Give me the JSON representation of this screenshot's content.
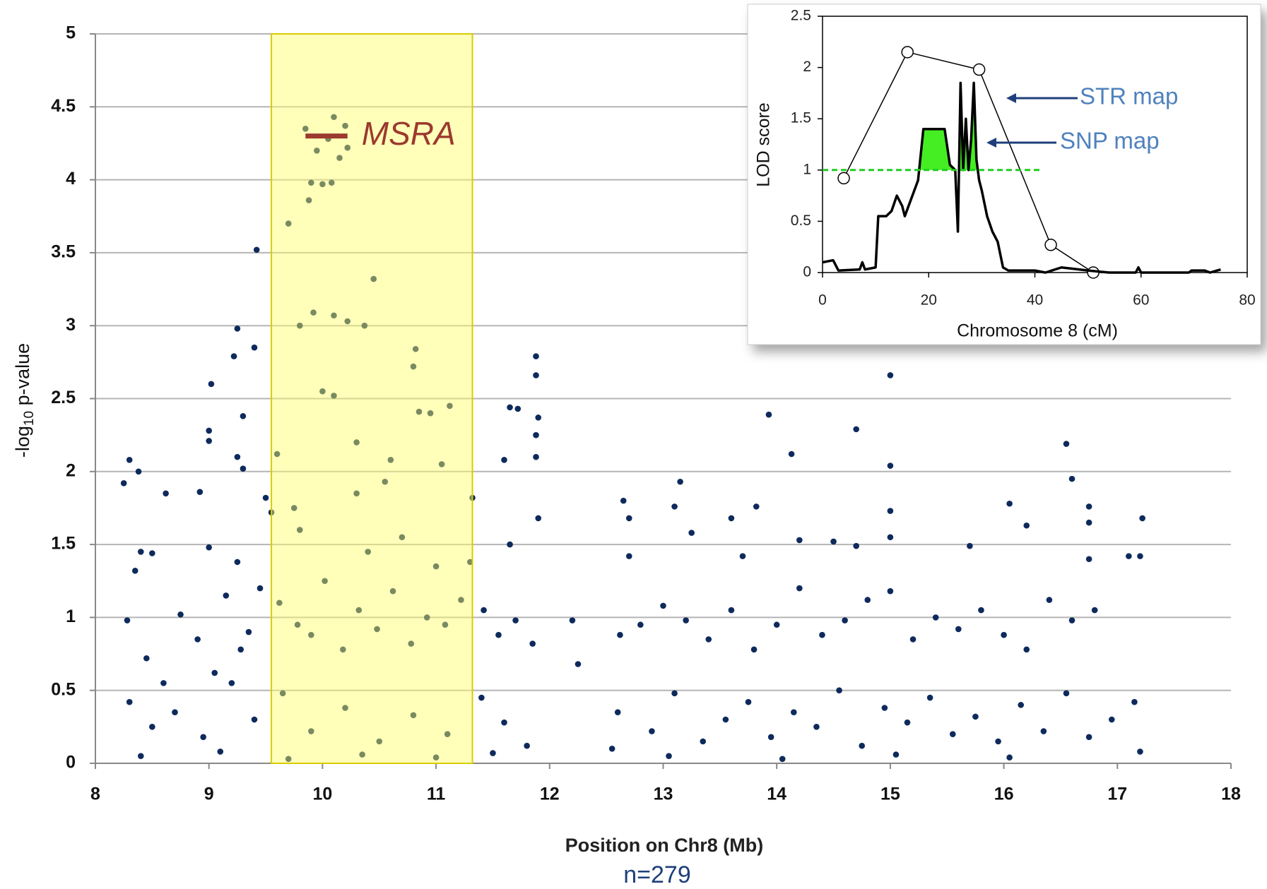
{
  "chart_data": [
    {
      "type": "scatter",
      "xlabel": "Position on Chr8 (Mb)",
      "ylabel": [
        "-log",
        "10",
        " p-value"
      ],
      "footnote": "n=279",
      "color": "#0e2a5c",
      "xlim": [
        8,
        18
      ],
      "xticks": [
        8,
        9,
        10,
        11,
        12,
        13,
        14,
        15,
        16,
        17,
        18
      ],
      "ylim": [
        0,
        5
      ],
      "yticks": [
        0,
        0.5,
        1,
        1.5,
        2,
        2.5,
        3,
        3.5,
        4,
        4.5,
        5
      ],
      "grid": true,
      "highlight": {
        "xlim": [
          9.55,
          11.32
        ],
        "color": "#ffff66"
      },
      "gene": {
        "label": "MSRA",
        "start": 9.85,
        "end": 10.22,
        "y": 4.3,
        "color": "#9b3a2e"
      },
      "x": [
        10.1,
        9.85,
        10.2,
        10.22,
        10.05,
        9.95,
        10.15,
        9.9,
        10.0,
        10.08,
        9.88,
        9.7,
        9.42,
        10.45,
        9.92,
        10.1,
        10.22,
        10.37,
        9.8,
        9.25,
        11.88,
        10.82,
        10.8,
        11.88,
        15.0,
        9.22,
        9.4,
        9.02,
        10.0,
        10.1,
        11.12,
        11.65,
        11.72,
        13.93,
        11.9,
        9.3,
        10.95,
        10.85,
        14.7,
        9.0,
        9.0,
        16.55,
        10.3,
        11.88,
        14.13,
        11.88,
        9.6,
        8.3,
        9.25,
        10.6,
        11.05,
        15.0,
        11.6,
        8.25,
        8.38,
        9.3,
        8.62,
        8.92,
        10.55,
        10.3,
        16.6,
        13.15,
        12.65,
        13.1,
        13.82,
        16.05,
        16.75,
        17.22,
        11.32,
        12.7,
        13.6,
        9.5,
        9.55,
        11.9,
        15.0,
        13.25,
        14.2,
        14.5,
        16.2,
        16.75,
        15.0,
        14.7,
        9.0,
        11.65,
        8.5,
        8.4,
        8.35,
        9.25,
        15.7,
        17.1,
        17.2,
        16.75,
        12.7,
        13.7,
        9.8,
        10.4,
        10.7,
        11.0,
        11.3,
        9.75,
        8.28,
        8.45,
        8.6,
        8.75,
        8.9,
        9.05,
        9.15,
        9.28,
        9.35,
        9.45,
        9.62,
        9.78,
        9.9,
        10.02,
        10.18,
        10.32,
        10.48,
        10.62,
        10.78,
        10.92,
        11.08,
        11.22,
        11.42,
        11.55,
        11.7,
        11.85,
        12.2,
        12.25,
        12.62,
        12.8,
        13.0,
        13.2,
        13.4,
        13.6,
        13.8,
        14.0,
        14.2,
        14.4,
        14.6,
        14.8,
        15.0,
        15.2,
        15.4,
        15.6,
        15.8,
        16.0,
        16.2,
        16.4,
        16.6,
        16.8,
        8.3,
        8.5,
        8.7,
        8.95,
        9.2,
        9.4,
        9.65,
        9.9,
        10.2,
        10.5,
        10.8,
        11.1,
        11.4,
        11.6,
        11.8,
        12.6,
        12.9,
        13.1,
        13.35,
        13.55,
        13.75,
        13.95,
        14.15,
        14.35,
        14.55,
        14.75,
        14.95,
        15.15,
        15.35,
        15.55,
        15.75,
        15.95,
        16.15,
        16.35,
        16.55,
        16.75,
        16.95,
        17.15,
        17.2,
        12.55,
        8.4,
        9.1,
        9.7,
        10.35,
        11.0,
        11.5,
        13.05,
        14.05,
        15.05,
        16.05
      ],
      "values": [
        4.43,
        4.35,
        4.37,
        4.22,
        4.28,
        4.2,
        4.15,
        3.98,
        3.97,
        3.98,
        3.86,
        3.7,
        3.52,
        3.32,
        3.09,
        3.07,
        3.03,
        3.0,
        3.0,
        2.98,
        2.79,
        2.84,
        2.72,
        2.66,
        2.66,
        2.79,
        2.85,
        2.6,
        2.55,
        2.52,
        2.45,
        2.44,
        2.43,
        2.39,
        2.37,
        2.38,
        2.4,
        2.41,
        2.29,
        2.28,
        2.21,
        2.19,
        2.2,
        2.25,
        2.12,
        2.1,
        2.12,
        2.08,
        2.1,
        2.08,
        2.05,
        2.04,
        2.08,
        1.92,
        2.0,
        2.02,
        1.85,
        1.86,
        1.93,
        1.85,
        1.95,
        1.93,
        1.8,
        1.76,
        1.76,
        1.78,
        1.76,
        1.68,
        1.82,
        1.68,
        1.68,
        1.82,
        1.72,
        1.68,
        1.73,
        1.58,
        1.53,
        1.52,
        1.63,
        1.65,
        1.55,
        1.49,
        1.48,
        1.5,
        1.44,
        1.45,
        1.32,
        1.38,
        1.49,
        1.42,
        1.42,
        1.4,
        1.42,
        1.42,
        1.6,
        1.45,
        1.55,
        1.35,
        1.38,
        1.75,
        0.98,
        0.72,
        0.55,
        1.02,
        0.85,
        0.62,
        1.15,
        0.78,
        0.9,
        1.2,
        1.1,
        0.95,
        0.88,
        1.25,
        0.78,
        1.05,
        0.92,
        1.18,
        0.82,
        1.0,
        0.95,
        1.12,
        1.05,
        0.88,
        0.98,
        0.82,
        0.98,
        0.68,
        0.88,
        0.95,
        1.08,
        0.98,
        0.85,
        1.05,
        0.78,
        0.95,
        1.2,
        0.88,
        0.98,
        1.12,
        1.18,
        0.85,
        1.0,
        0.92,
        1.05,
        0.88,
        0.78,
        1.12,
        0.98,
        1.05,
        0.42,
        0.25,
        0.35,
        0.18,
        0.55,
        0.3,
        0.48,
        0.22,
        0.38,
        0.15,
        0.33,
        0.2,
        0.45,
        0.28,
        0.12,
        0.35,
        0.22,
        0.48,
        0.15,
        0.3,
        0.42,
        0.18,
        0.35,
        0.25,
        0.5,
        0.12,
        0.38,
        0.28,
        0.45,
        0.2,
        0.32,
        0.15,
        0.4,
        0.22,
        0.48,
        0.18,
        0.3,
        0.42,
        0.08,
        0.1,
        0.05,
        0.08,
        0.03,
        0.06,
        0.04,
        0.07,
        0.05,
        0.03,
        0.06,
        0.04
      ]
    },
    {
      "type": "line",
      "xlabel": "Chromosome 8 (cM)",
      "ylabel": "LOD score",
      "xlim": [
        0,
        80
      ],
      "xticks": [
        0,
        20,
        40,
        60,
        80
      ],
      "ylim": [
        0,
        2.5
      ],
      "yticks": [
        0,
        0.5,
        1,
        1.5,
        2,
        2.5
      ],
      "threshold": {
        "value": 1,
        "xlim": [
          0,
          41
        ],
        "color": "#22cc22"
      },
      "series": [
        {
          "name": "STR map",
          "color": "#000000",
          "markers": true,
          "x": [
            4,
            16,
            29.5,
            43,
            51
          ],
          "values": [
            0.92,
            2.15,
            1.98,
            0.27,
            0
          ]
        },
        {
          "name": "SNP map",
          "color": "#000000",
          "fill": "#44ee22",
          "markers": false,
          "x": [
            0,
            2,
            3,
            7,
            7.5,
            8,
            10,
            10.5,
            12,
            13,
            14,
            15,
            15.5,
            16,
            18,
            19,
            20,
            22,
            23,
            24,
            25,
            25.5,
            26,
            26.5,
            27,
            27.5,
            28,
            28.5,
            29,
            29.5,
            30,
            31,
            32,
            33,
            34,
            35,
            40,
            42,
            45,
            50,
            54,
            59,
            59.5,
            60,
            69,
            69.5,
            72,
            73,
            75
          ],
          "values": [
            0.1,
            0.12,
            0.02,
            0.03,
            0.1,
            0.03,
            0.05,
            0.55,
            0.55,
            0.6,
            0.75,
            0.65,
            0.55,
            0.62,
            0.9,
            1.4,
            1.4,
            1.4,
            1.4,
            1.05,
            1.0,
            0.4,
            1.85,
            1.0,
            1.5,
            1.0,
            1.3,
            1.85,
            1.1,
            0.9,
            0.8,
            0.55,
            0.4,
            0.3,
            0.05,
            0.02,
            0.02,
            0,
            0.05,
            0.02,
            0,
            0,
            0.05,
            0,
            0,
            0.02,
            0.02,
            0,
            0.03
          ]
        }
      ]
    }
  ]
}
